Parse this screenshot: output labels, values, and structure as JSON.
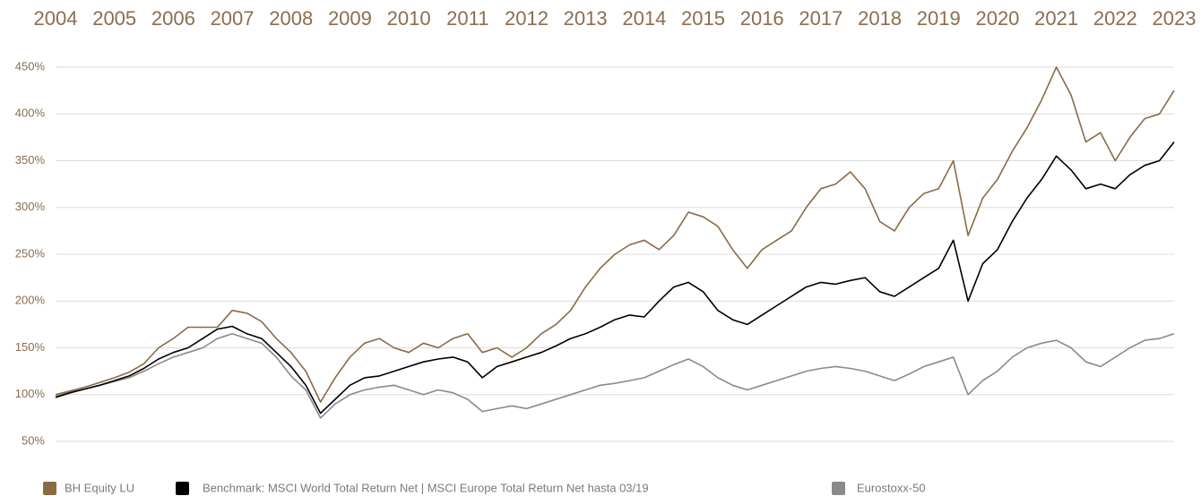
{
  "chart_data": {
    "type": "line",
    "x": [
      2004,
      2004.25,
      2004.5,
      2004.75,
      2005,
      2005.25,
      2005.5,
      2005.75,
      2006,
      2006.25,
      2006.5,
      2006.75,
      2007,
      2007.25,
      2007.5,
      2007.75,
      2008,
      2008.25,
      2008.5,
      2008.75,
      2009,
      2009.25,
      2009.5,
      2009.75,
      2010,
      2010.25,
      2010.5,
      2010.75,
      2011,
      2011.25,
      2011.5,
      2011.75,
      2012,
      2012.25,
      2012.5,
      2012.75,
      2013,
      2013.25,
      2013.5,
      2013.75,
      2014,
      2014.25,
      2014.5,
      2014.75,
      2015,
      2015.25,
      2015.5,
      2015.75,
      2016,
      2016.25,
      2016.5,
      2016.75,
      2017,
      2017.25,
      2017.5,
      2017.75,
      2018,
      2018.25,
      2018.5,
      2018.75,
      2019,
      2019.25,
      2019.5,
      2019.75,
      2020,
      2020.25,
      2020.5,
      2020.75,
      2021,
      2021.25,
      2021.5,
      2021.75,
      2022,
      2022.25,
      2022.5,
      2022.75,
      2023
    ],
    "series": [
      {
        "name": "BH Equity LU",
        "color": "#8b6a46",
        "values": [
          100,
          104,
          108,
          113,
          118,
          124,
          133,
          150,
          160,
          172,
          172,
          172,
          190,
          187,
          178,
          160,
          145,
          125,
          92,
          118,
          140,
          155,
          160,
          150,
          145,
          155,
          150,
          160,
          165,
          145,
          150,
          140,
          150,
          165,
          175,
          190,
          215,
          235,
          250,
          260,
          265,
          255,
          270,
          295,
          290,
          280,
          255,
          235,
          255,
          265,
          275,
          300,
          320,
          325,
          338,
          320,
          285,
          275,
          300,
          315,
          320,
          350,
          270,
          310,
          330,
          360,
          385,
          415,
          450,
          420,
          370,
          380,
          350,
          375,
          395,
          400,
          425
        ]
      },
      {
        "name": "Benchmark: MSCI World Total Return Net | MSCI Europe Total Return Net hasta 03/19",
        "color": "#000000",
        "values": [
          97,
          102,
          106,
          110,
          115,
          120,
          128,
          138,
          145,
          150,
          160,
          170,
          173,
          165,
          160,
          145,
          130,
          110,
          80,
          95,
          110,
          118,
          120,
          125,
          130,
          135,
          138,
          140,
          135,
          118,
          130,
          135,
          140,
          145,
          152,
          160,
          165,
          172,
          180,
          185,
          183,
          200,
          215,
          220,
          210,
          190,
          180,
          175,
          185,
          195,
          205,
          215,
          220,
          218,
          222,
          225,
          210,
          205,
          215,
          225,
          235,
          265,
          200,
          240,
          255,
          285,
          310,
          330,
          355,
          340,
          320,
          325,
          320,
          335,
          345,
          350,
          370
        ]
      },
      {
        "name": "Eurostoxx-50",
        "color": "#8a8a8a",
        "values": [
          98,
          103,
          106,
          110,
          114,
          118,
          125,
          133,
          140,
          145,
          150,
          160,
          165,
          160,
          155,
          140,
          120,
          105,
          75,
          90,
          100,
          105,
          108,
          110,
          105,
          100,
          105,
          102,
          95,
          82,
          85,
          88,
          85,
          90,
          95,
          100,
          105,
          110,
          112,
          115,
          118,
          125,
          132,
          138,
          130,
          118,
          110,
          105,
          110,
          115,
          120,
          125,
          128,
          130,
          128,
          125,
          120,
          115,
          122,
          130,
          135,
          140,
          100,
          115,
          125,
          140,
          150,
          155,
          158,
          150,
          135,
          130,
          140,
          150,
          158,
          160,
          165
        ]
      }
    ],
    "xlim": [
      2004,
      2023
    ],
    "xticks": [
      2004,
      2005,
      2006,
      2007,
      2008,
      2009,
      2010,
      2011,
      2012,
      2013,
      2014,
      2015,
      2016,
      2017,
      2018,
      2019,
      2020,
      2021,
      2022,
      2023
    ],
    "ylim": [
      50,
      450
    ],
    "yticks": [
      {
        "value": 50,
        "label": "50%"
      },
      {
        "value": 100,
        "label": "100%"
      },
      {
        "value": 150,
        "label": "150%"
      },
      {
        "value": 200,
        "label": "200%"
      },
      {
        "value": 250,
        "label": "250%"
      },
      {
        "value": 300,
        "label": "300%"
      },
      {
        "value": 350,
        "label": "350%"
      },
      {
        "value": 400,
        "label": "400%"
      },
      {
        "value": 450,
        "label": "450%"
      }
    ],
    "grid": true
  }
}
